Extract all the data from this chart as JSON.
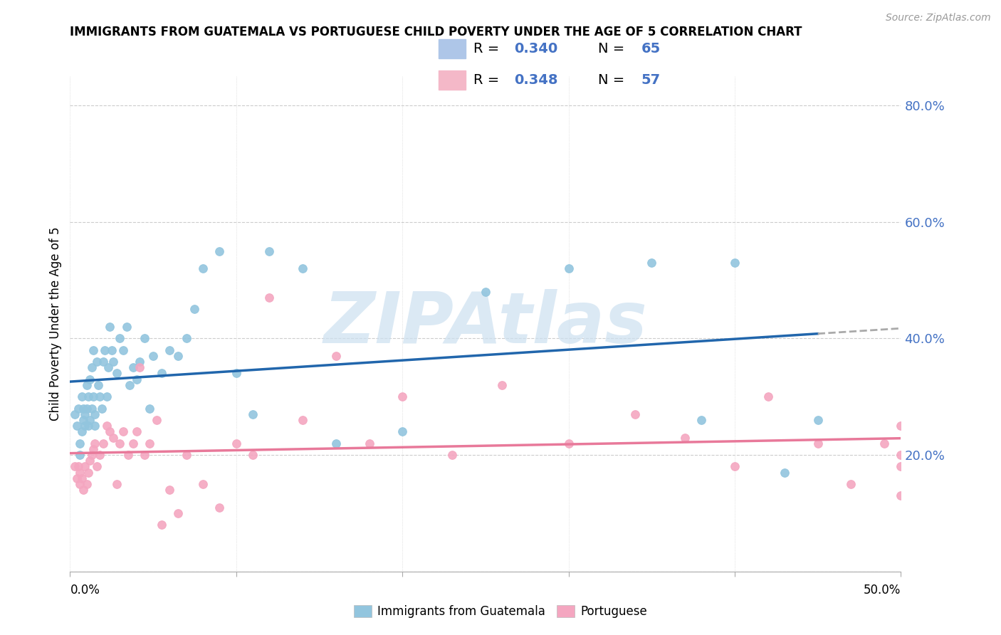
{
  "title": "IMMIGRANTS FROM GUATEMALA VS PORTUGUESE CHILD POVERTY UNDER THE AGE OF 5 CORRELATION CHART",
  "source": "Source: ZipAtlas.com",
  "ylabel": "Child Poverty Under the Age of 5",
  "xlim": [
    0.0,
    0.5
  ],
  "ylim": [
    0.0,
    0.85
  ],
  "yticks": [
    0.0,
    0.2,
    0.4,
    0.6,
    0.8
  ],
  "ytick_labels": [
    "",
    "20.0%",
    "40.0%",
    "60.0%",
    "80.0%"
  ],
  "xtick_labels": [
    "0.0%",
    "",
    "",
    "",
    "",
    "50.0%"
  ],
  "series1_color": "#92c5de",
  "series2_color": "#f4a6c0",
  "line1_color": "#2166ac",
  "line2_color": "#e8799a",
  "line1_color_ext": "#aaaaaa",
  "watermark": "ZIPAtlas",
  "watermark_color": "#cce0f0",
  "legend_label1": "Immigrants from Guatemala",
  "legend_label2": "Portuguese",
  "legend_R1": "0.340",
  "legend_N1": "65",
  "legend_R2": "0.348",
  "legend_N2": "57",
  "series1_x": [
    0.003,
    0.004,
    0.005,
    0.006,
    0.006,
    0.007,
    0.007,
    0.008,
    0.008,
    0.009,
    0.009,
    0.01,
    0.01,
    0.011,
    0.011,
    0.012,
    0.012,
    0.013,
    0.013,
    0.014,
    0.014,
    0.015,
    0.015,
    0.016,
    0.017,
    0.018,
    0.019,
    0.02,
    0.021,
    0.022,
    0.023,
    0.024,
    0.025,
    0.026,
    0.028,
    0.03,
    0.032,
    0.034,
    0.036,
    0.038,
    0.04,
    0.042,
    0.045,
    0.048,
    0.05,
    0.055,
    0.06,
    0.065,
    0.07,
    0.075,
    0.08,
    0.09,
    0.1,
    0.11,
    0.12,
    0.14,
    0.16,
    0.2,
    0.25,
    0.3,
    0.35,
    0.38,
    0.4,
    0.43,
    0.45
  ],
  "series1_y": [
    0.27,
    0.25,
    0.28,
    0.22,
    0.2,
    0.3,
    0.24,
    0.28,
    0.26,
    0.25,
    0.27,
    0.32,
    0.28,
    0.3,
    0.25,
    0.33,
    0.26,
    0.35,
    0.28,
    0.38,
    0.3,
    0.25,
    0.27,
    0.36,
    0.32,
    0.3,
    0.28,
    0.36,
    0.38,
    0.3,
    0.35,
    0.42,
    0.38,
    0.36,
    0.34,
    0.4,
    0.38,
    0.42,
    0.32,
    0.35,
    0.33,
    0.36,
    0.4,
    0.28,
    0.37,
    0.34,
    0.38,
    0.37,
    0.4,
    0.45,
    0.52,
    0.55,
    0.34,
    0.27,
    0.55,
    0.52,
    0.22,
    0.24,
    0.48,
    0.52,
    0.53,
    0.26,
    0.53,
    0.17,
    0.26
  ],
  "series2_x": [
    0.003,
    0.004,
    0.005,
    0.006,
    0.006,
    0.007,
    0.008,
    0.009,
    0.01,
    0.011,
    0.012,
    0.013,
    0.014,
    0.015,
    0.016,
    0.018,
    0.02,
    0.022,
    0.024,
    0.026,
    0.028,
    0.03,
    0.032,
    0.035,
    0.038,
    0.04,
    0.042,
    0.045,
    0.048,
    0.052,
    0.055,
    0.06,
    0.065,
    0.07,
    0.08,
    0.09,
    0.1,
    0.11,
    0.12,
    0.14,
    0.16,
    0.18,
    0.2,
    0.23,
    0.26,
    0.3,
    0.34,
    0.37,
    0.4,
    0.42,
    0.45,
    0.47,
    0.49,
    0.5,
    0.5,
    0.5,
    0.5
  ],
  "series2_y": [
    0.18,
    0.16,
    0.18,
    0.15,
    0.17,
    0.16,
    0.14,
    0.18,
    0.15,
    0.17,
    0.19,
    0.2,
    0.21,
    0.22,
    0.18,
    0.2,
    0.22,
    0.25,
    0.24,
    0.23,
    0.15,
    0.22,
    0.24,
    0.2,
    0.22,
    0.24,
    0.35,
    0.2,
    0.22,
    0.26,
    0.08,
    0.14,
    0.1,
    0.2,
    0.15,
    0.11,
    0.22,
    0.2,
    0.47,
    0.26,
    0.37,
    0.22,
    0.3,
    0.2,
    0.32,
    0.22,
    0.27,
    0.23,
    0.18,
    0.3,
    0.22,
    0.15,
    0.22,
    0.25,
    0.13,
    0.2,
    0.18
  ]
}
